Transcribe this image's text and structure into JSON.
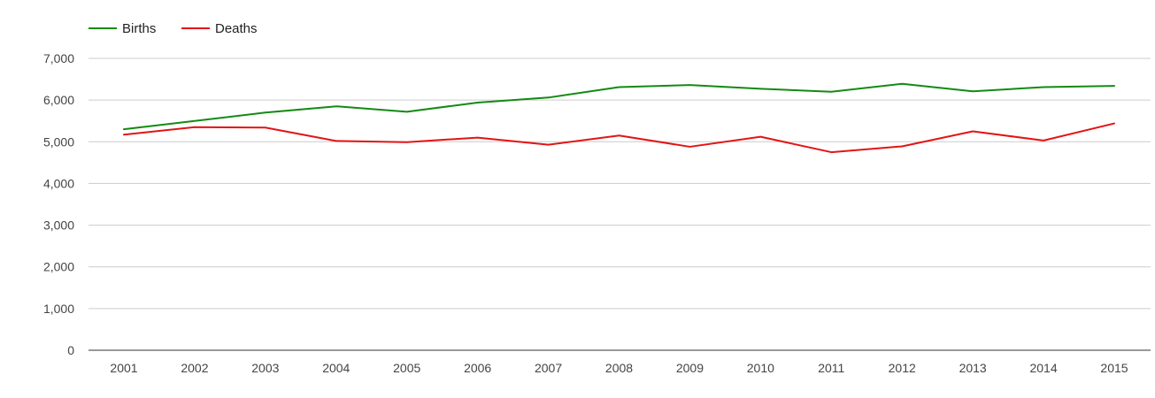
{
  "chart_data": {
    "type": "line",
    "title": "",
    "xlabel": "",
    "ylabel": "",
    "x": [
      "2001",
      "2002",
      "2003",
      "2004",
      "2005",
      "2006",
      "2007",
      "2008",
      "2009",
      "2010",
      "2011",
      "2012",
      "2013",
      "2014",
      "2015"
    ],
    "ylim": [
      0,
      7000
    ],
    "yticks": [
      0,
      1000,
      2000,
      3000,
      4000,
      5000,
      6000,
      7000
    ],
    "ytick_labels": [
      "0",
      "1,000",
      "2,000",
      "3,000",
      "4,000",
      "5,000",
      "6,000",
      "7,000"
    ],
    "grid": true,
    "legend_position": "top-left",
    "series": [
      {
        "name": "Births",
        "color": "#138a13",
        "values": [
          5300,
          5500,
          5700,
          5850,
          5720,
          5940,
          6060,
          6310,
          6360,
          6270,
          6200,
          6390,
          6210,
          6310,
          6340
        ]
      },
      {
        "name": "Deaths",
        "color": "#e31414",
        "values": [
          5170,
          5350,
          5340,
          5020,
          4990,
          5100,
          4930,
          5150,
          4880,
          5120,
          4750,
          4890,
          5250,
          5030,
          5440
        ]
      }
    ]
  }
}
